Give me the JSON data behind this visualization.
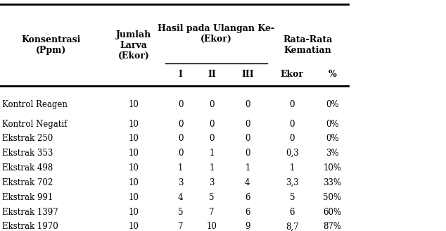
{
  "rows": [
    [
      "Kontrol Reagen",
      "10",
      "0",
      "0",
      "0",
      "0",
      "0%"
    ],
    [
      "Kontrol Negatif",
      "10",
      "0",
      "0",
      "0",
      "0",
      "0%"
    ],
    [
      "Ekstrak 250",
      "10",
      "0",
      "0",
      "0",
      "0",
      "0%"
    ],
    [
      "Ekstrak 353",
      "10",
      "0",
      "1",
      "0",
      "0,3",
      "3%"
    ],
    [
      "Ekstrak 498",
      "10",
      "1",
      "1",
      "1",
      "1",
      "10%"
    ],
    [
      "Ekstrak 702",
      "10",
      "3",
      "3",
      "4",
      "3,3",
      "33%"
    ],
    [
      "Ekstrak 991",
      "10",
      "4",
      "5",
      "6",
      "5",
      "50%"
    ],
    [
      "Ekstrak 1397",
      "10",
      "5",
      "7",
      "6",
      "6",
      "60%"
    ],
    [
      "Ekstrak 1970",
      "10",
      "7",
      "10",
      "9",
      "8,7",
      "87%"
    ]
  ],
  "background_color": "#ffffff",
  "font_size": 8.5,
  "header_font_size": 9.0
}
